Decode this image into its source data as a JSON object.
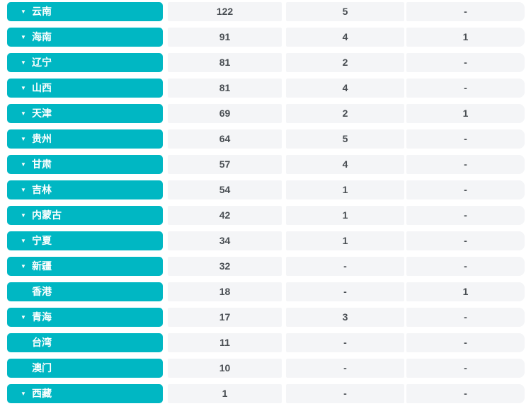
{
  "table": {
    "accent_color": "#00b7c3",
    "cell_background": "#f4f5f7",
    "value_text_color": "#4a4f54",
    "expand_icon_glyph": "▼",
    "rows": [
      {
        "region": "云南",
        "expandable": true,
        "values": [
          "122",
          "5",
          "-"
        ]
      },
      {
        "region": "海南",
        "expandable": true,
        "values": [
          "91",
          "4",
          "1"
        ]
      },
      {
        "region": "辽宁",
        "expandable": true,
        "values": [
          "81",
          "2",
          "-"
        ]
      },
      {
        "region": "山西",
        "expandable": true,
        "values": [
          "81",
          "4",
          "-"
        ]
      },
      {
        "region": "天津",
        "expandable": true,
        "values": [
          "69",
          "2",
          "1"
        ]
      },
      {
        "region": "贵州",
        "expandable": true,
        "values": [
          "64",
          "5",
          "-"
        ]
      },
      {
        "region": "甘肃",
        "expandable": true,
        "values": [
          "57",
          "4",
          "-"
        ]
      },
      {
        "region": "吉林",
        "expandable": true,
        "values": [
          "54",
          "1",
          "-"
        ]
      },
      {
        "region": "内蒙古",
        "expandable": true,
        "values": [
          "42",
          "1",
          "-"
        ]
      },
      {
        "region": "宁夏",
        "expandable": true,
        "values": [
          "34",
          "1",
          "-"
        ]
      },
      {
        "region": "新疆",
        "expandable": true,
        "values": [
          "32",
          "-",
          "-"
        ]
      },
      {
        "region": "香港",
        "expandable": false,
        "values": [
          "18",
          "-",
          "1"
        ]
      },
      {
        "region": "青海",
        "expandable": true,
        "values": [
          "17",
          "3",
          "-"
        ]
      },
      {
        "region": "台湾",
        "expandable": false,
        "values": [
          "11",
          "-",
          "-"
        ]
      },
      {
        "region": "澳门",
        "expandable": false,
        "values": [
          "10",
          "-",
          "-"
        ]
      },
      {
        "region": "西藏",
        "expandable": true,
        "values": [
          "1",
          "-",
          "-"
        ]
      }
    ]
  }
}
